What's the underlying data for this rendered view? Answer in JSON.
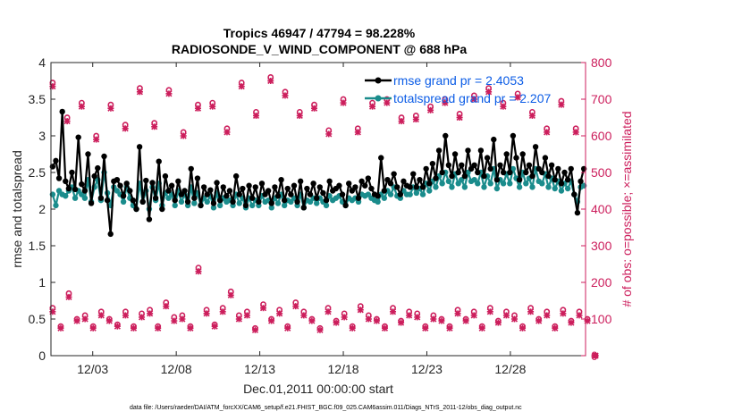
{
  "chart_data": {
    "type": "line",
    "title": "Tropics 46947 / 47794 = 98.228%",
    "subtitle": "RADIOSONDE_V_WIND_COMPONENT @ 688 hPa",
    "xlabel": "Dec.01,2011 00:00:00 start",
    "ylabel_left": "rmse and totalspread",
    "ylabel_right": "# of obs: o=possible; ×=assimilated",
    "xlim": [
      0.5,
      32.5
    ],
    "ylim_left": [
      0,
      4
    ],
    "ylim_right": [
      0,
      800
    ],
    "x_ticks": [
      {
        "value": 3,
        "label": "12/03"
      },
      {
        "value": 8,
        "label": "12/08"
      },
      {
        "value": 13,
        "label": "12/13"
      },
      {
        "value": 18,
        "label": "12/18"
      },
      {
        "value": 23,
        "label": "12/23"
      },
      {
        "value": 28,
        "label": "12/28"
      }
    ],
    "y_ticks_left": [
      "0",
      "0.5",
      "1",
      "1.5",
      "2",
      "2.5",
      "3",
      "3.5",
      "4"
    ],
    "y_ticks_right": [
      "0",
      "100",
      "200",
      "300",
      "400",
      "500",
      "600",
      "700",
      "800"
    ],
    "footer": "data file: /Users/raeder/DAI/ATM_forcXX/CAM6_setup/f.e21.FHIST_BGC.f09_025.CAM6assim.011/Diags_NTrS_2011-12/obs_diag_output.nc",
    "legend": [
      {
        "label": "rmse grand pr = 2.4053",
        "color": "#000000"
      },
      {
        "label": "totalspread grand pr = 2.207",
        "color": "#1a8c8c"
      }
    ],
    "colors": {
      "rmse": "#000000",
      "spread": "#1a8c8c",
      "obs": "#cc1e5c",
      "legend_text": "#0b5ce6"
    },
    "series": [
      {
        "name": "rmse",
        "axis": "left",
        "values": [
          2.58,
          2.66,
          2.42,
          3.33,
          2.38,
          2.28,
          2.5,
          2.27,
          2.98,
          2.34,
          2.25,
          2.75,
          2.08,
          2.45,
          2.56,
          2.15,
          2.72,
          2.12,
          1.66,
          2.38,
          2.4,
          2.32,
          2.18,
          2.35,
          2.25,
          2.12,
          2.0,
          2.85,
          2.1,
          2.39,
          1.86,
          2.36,
          2.15,
          2.65,
          2.0,
          2.45,
          2.25,
          2.32,
          2.12,
          2.38,
          2.2,
          2.25,
          2.1,
          2.55,
          2.15,
          2.42,
          2.05,
          2.3,
          2.2,
          2.26,
          2.08,
          2.36,
          2.12,
          2.3,
          2.18,
          2.25,
          2.1,
          2.45,
          2.2,
          2.28,
          2.05,
          2.32,
          2.15,
          2.3,
          2.1,
          2.35,
          2.2,
          2.25,
          2.08,
          2.3,
          2.18,
          2.4,
          2.12,
          2.28,
          2.2,
          2.32,
          2.1,
          2.38,
          2.02,
          2.28,
          2.2,
          2.35,
          2.15,
          2.3,
          2.22,
          2.12,
          2.38,
          2.25,
          2.28,
          2.32,
          2.2,
          2.05,
          2.35,
          2.25,
          2.3,
          2.15,
          2.38,
          2.32,
          2.42,
          2.28,
          2.2,
          2.18,
          2.7,
          2.25,
          2.4,
          2.35,
          2.48,
          2.3,
          2.2,
          2.38,
          2.32,
          2.3,
          2.48,
          2.3,
          2.4,
          2.3,
          2.55,
          2.35,
          2.62,
          2.42,
          2.8,
          2.5,
          3.0,
          2.6,
          2.45,
          2.75,
          2.5,
          2.6,
          2.45,
          2.8,
          2.55,
          2.6,
          2.5,
          2.8,
          2.45,
          2.7,
          2.55,
          2.95,
          2.4,
          2.6,
          2.5,
          2.75,
          2.5,
          3.0,
          2.7,
          2.4,
          2.75,
          2.5,
          2.6,
          2.45,
          2.85,
          2.55,
          2.5,
          2.7,
          2.45,
          2.6,
          2.4,
          2.55,
          2.35,
          2.5,
          2.4,
          2.55,
          2.2,
          1.95,
          2.38,
          2.55
        ]
      },
      {
        "name": "totalspread",
        "axis": "left",
        "values": [
          2.2,
          2.05,
          2.25,
          2.2,
          2.18,
          2.25,
          2.3,
          2.15,
          2.25,
          2.2,
          2.15,
          2.4,
          2.1,
          2.3,
          2.4,
          2.12,
          2.5,
          2.22,
          2.05,
          2.3,
          2.25,
          2.2,
          2.1,
          2.3,
          2.15,
          2.05,
          2.0,
          2.35,
          2.1,
          2.25,
          2.0,
          2.3,
          2.12,
          2.35,
          2.05,
          2.22,
          2.15,
          2.2,
          2.05,
          2.25,
          2.1,
          2.2,
          2.05,
          2.3,
          2.08,
          2.22,
          2.05,
          2.15,
          2.1,
          2.18,
          2.02,
          2.22,
          2.05,
          2.15,
          2.1,
          2.12,
          2.05,
          2.2,
          2.08,
          2.15,
          2.02,
          2.15,
          2.05,
          2.12,
          2.05,
          2.18,
          2.1,
          2.12,
          2.02,
          2.15,
          2.08,
          2.2,
          2.05,
          2.12,
          2.1,
          2.15,
          2.05,
          2.2,
          2.02,
          2.12,
          2.1,
          2.15,
          2.08,
          2.15,
          2.1,
          2.05,
          2.18,
          2.12,
          2.15,
          2.18,
          2.1,
          2.05,
          2.15,
          2.12,
          2.15,
          2.1,
          2.2,
          2.18,
          2.2,
          2.15,
          2.12,
          2.1,
          2.2,
          2.15,
          2.25,
          2.2,
          2.3,
          2.18,
          2.15,
          2.25,
          2.2,
          2.2,
          2.3,
          2.22,
          2.28,
          2.2,
          2.35,
          2.25,
          2.38,
          2.3,
          2.45,
          2.35,
          2.5,
          2.38,
          2.3,
          2.48,
          2.35,
          2.4,
          2.3,
          2.5,
          2.38,
          2.4,
          2.35,
          2.5,
          2.3,
          2.45,
          2.35,
          2.55,
          2.28,
          2.4,
          2.35,
          2.48,
          2.35,
          2.55,
          2.42,
          2.3,
          2.5,
          2.35,
          2.42,
          2.3,
          2.55,
          2.38,
          2.35,
          2.48,
          2.3,
          2.42,
          2.28,
          2.38,
          2.25,
          2.35,
          2.28,
          2.38,
          2.2,
          2.1,
          2.3,
          2.32
        ]
      },
      {
        "name": "obs_possible_00Z",
        "axis": "right",
        "marker": "o",
        "values": [
          745,
          650,
          690,
          600,
          685,
          630,
          730,
          635,
          725,
          610,
          685,
          690,
          620,
          745,
          665,
          760,
          720,
          665,
          685,
          615,
          700,
          620,
          690,
          700,
          650,
          655,
          680,
          700,
          660,
          710,
          730,
          690,
          715,
          665,
          620,
          695,
          620
        ]
      },
      {
        "name": "obs_assimilated_00Z",
        "axis": "right",
        "marker": "x",
        "values": [
          735,
          640,
          680,
          590,
          675,
          620,
          720,
          625,
          715,
          600,
          675,
          680,
          610,
          735,
          655,
          750,
          710,
          655,
          675,
          605,
          690,
          610,
          680,
          690,
          640,
          645,
          670,
          690,
          650,
          700,
          720,
          680,
          705,
          655,
          610,
          685,
          610
        ]
      },
      {
        "name": "obs_possible_12Z",
        "axis": "right",
        "marker": "o",
        "values": [
          130,
          80,
          170,
          100,
          110,
          80,
          120,
          100,
          85,
          120,
          80,
          115,
          125,
          80,
          145,
          105,
          110,
          80,
          240,
          125,
          85,
          130,
          175,
          110,
          120,
          75,
          140,
          100,
          125,
          80,
          145,
          120,
          100,
          75,
          130,
          95,
          115,
          80,
          135,
          110,
          100,
          80,
          130,
          95,
          120,
          115,
          80,
          110,
          100,
          80,
          125,
          100,
          120,
          80,
          130,
          95,
          120,
          110,
          80,
          130,
          100,
          120,
          80,
          125,
          95,
          120,
          100,
          0
        ]
      },
      {
        "name": "obs_assimilated_12Z",
        "axis": "right",
        "marker": "x",
        "values": [
          120,
          75,
          160,
          95,
          100,
          75,
          110,
          95,
          80,
          110,
          75,
          105,
          115,
          75,
          135,
          95,
          100,
          75,
          230,
          115,
          80,
          120,
          165,
          100,
          110,
          70,
          130,
          95,
          115,
          75,
          135,
          110,
          95,
          70,
          120,
          90,
          105,
          75,
          125,
          100,
          95,
          75,
          120,
          90,
          110,
          105,
          75,
          100,
          95,
          75,
          115,
          95,
          110,
          75,
          120,
          90,
          110,
          100,
          75,
          120,
          95,
          110,
          75,
          115,
          90,
          110,
          95,
          0
        ]
      }
    ]
  }
}
